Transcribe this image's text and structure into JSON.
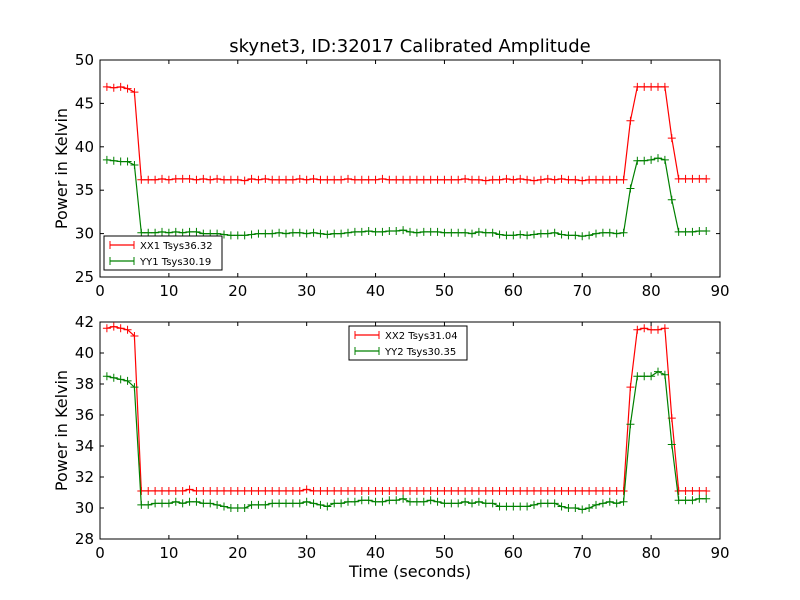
{
  "figure": {
    "title": "skynet3, ID:32017 Calibrated Amplitude",
    "xlabel": "Time (seconds)"
  },
  "colors": {
    "red": "#ff0000",
    "green": "#008000"
  },
  "chart_data": [
    {
      "type": "line",
      "title": "skynet3, ID:32017 Calibrated Amplitude",
      "xlabel": "",
      "ylabel": "Power in Kelvin",
      "xlim": [
        0,
        90
      ],
      "ylim": [
        25,
        50
      ],
      "xticks": [
        0,
        10,
        20,
        30,
        40,
        50,
        60,
        70,
        80,
        90
      ],
      "yticks": [
        25,
        30,
        35,
        40,
        45,
        50
      ],
      "grid": false,
      "legend": "lower-left",
      "series": [
        {
          "name": "XX1 Tsys36.32",
          "color": "#ff0000",
          "x": [
            1,
            2,
            3,
            4,
            5,
            6,
            7,
            8,
            9,
            10,
            11,
            12,
            13,
            14,
            15,
            16,
            17,
            18,
            19,
            20,
            21,
            22,
            23,
            24,
            25,
            26,
            27,
            28,
            29,
            30,
            31,
            32,
            33,
            34,
            35,
            36,
            37,
            38,
            39,
            40,
            41,
            42,
            43,
            44,
            45,
            46,
            47,
            48,
            49,
            50,
            51,
            52,
            53,
            54,
            55,
            56,
            57,
            58,
            59,
            60,
            61,
            62,
            63,
            64,
            65,
            66,
            67,
            68,
            69,
            70,
            71,
            72,
            73,
            74,
            75,
            76,
            77,
            78,
            79,
            80,
            81,
            82,
            83,
            84,
            85,
            86,
            87,
            88
          ],
          "values": [
            46.9,
            46.8,
            46.9,
            46.7,
            46.3,
            36.2,
            36.2,
            36.2,
            36.3,
            36.2,
            36.3,
            36.3,
            36.3,
            36.2,
            36.3,
            36.2,
            36.3,
            36.2,
            36.2,
            36.2,
            36.1,
            36.3,
            36.2,
            36.3,
            36.2,
            36.2,
            36.2,
            36.2,
            36.3,
            36.2,
            36.3,
            36.2,
            36.2,
            36.2,
            36.2,
            36.3,
            36.2,
            36.2,
            36.2,
            36.2,
            36.3,
            36.2,
            36.2,
            36.2,
            36.2,
            36.2,
            36.2,
            36.2,
            36.2,
            36.2,
            36.2,
            36.2,
            36.3,
            36.2,
            36.2,
            36.1,
            36.2,
            36.2,
            36.3,
            36.2,
            36.3,
            36.2,
            36.1,
            36.2,
            36.3,
            36.2,
            36.3,
            36.2,
            36.2,
            36.1,
            36.2,
            36.2,
            36.2,
            36.2,
            36.2,
            36.2,
            43.0,
            46.9,
            46.9,
            46.9,
            46.9,
            46.9,
            41.0,
            36.3,
            36.3,
            36.3,
            36.3,
            36.3
          ]
        },
        {
          "name": "YY1 Tsys30.19",
          "color": "#008000",
          "x": [
            1,
            2,
            3,
            4,
            5,
            6,
            7,
            8,
            9,
            10,
            11,
            12,
            13,
            14,
            15,
            16,
            17,
            18,
            19,
            20,
            21,
            22,
            23,
            24,
            25,
            26,
            27,
            28,
            29,
            30,
            31,
            32,
            33,
            34,
            35,
            36,
            37,
            38,
            39,
            40,
            41,
            42,
            43,
            44,
            45,
            46,
            47,
            48,
            49,
            50,
            51,
            52,
            53,
            54,
            55,
            56,
            57,
            58,
            59,
            60,
            61,
            62,
            63,
            64,
            65,
            66,
            67,
            68,
            69,
            70,
            71,
            72,
            73,
            74,
            75,
            76,
            77,
            78,
            79,
            80,
            81,
            82,
            83,
            84,
            85,
            86,
            87,
            88
          ],
          "values": [
            38.5,
            38.4,
            38.3,
            38.3,
            37.9,
            30.1,
            30.1,
            30.1,
            30.2,
            30.1,
            30.2,
            30.1,
            30.2,
            30.2,
            30.0,
            30.0,
            30.0,
            29.9,
            29.8,
            29.8,
            29.8,
            29.9,
            30.0,
            30.0,
            30.0,
            30.1,
            30.0,
            30.1,
            30.1,
            30.0,
            30.1,
            30.0,
            29.9,
            30.0,
            30.0,
            30.1,
            30.2,
            30.2,
            30.3,
            30.2,
            30.2,
            30.3,
            30.3,
            30.4,
            30.2,
            30.1,
            30.2,
            30.2,
            30.2,
            30.1,
            30.1,
            30.1,
            30.1,
            30.0,
            30.2,
            30.1,
            30.1,
            29.9,
            29.8,
            29.8,
            29.9,
            29.8,
            29.9,
            30.0,
            30.0,
            30.1,
            29.9,
            29.8,
            29.8,
            29.7,
            29.8,
            30.0,
            30.1,
            30.1,
            30.0,
            30.1,
            35.2,
            38.4,
            38.4,
            38.5,
            38.7,
            38.5,
            33.9,
            30.2,
            30.2,
            30.2,
            30.3,
            30.3
          ]
        }
      ]
    },
    {
      "type": "line",
      "title": "",
      "xlabel": "Time (seconds)",
      "ylabel": "Power in Kelvin",
      "xlim": [
        0,
        90
      ],
      "ylim": [
        28,
        42
      ],
      "xticks": [
        0,
        10,
        20,
        30,
        40,
        50,
        60,
        70,
        80,
        90
      ],
      "yticks": [
        28,
        30,
        32,
        34,
        36,
        38,
        40,
        42
      ],
      "grid": false,
      "legend": "top-center",
      "series": [
        {
          "name": "XX2 Tsys31.04",
          "color": "#ff0000",
          "x": [
            1,
            2,
            3,
            4,
            5,
            6,
            7,
            8,
            9,
            10,
            11,
            12,
            13,
            14,
            15,
            16,
            17,
            18,
            19,
            20,
            21,
            22,
            23,
            24,
            25,
            26,
            27,
            28,
            29,
            30,
            31,
            32,
            33,
            34,
            35,
            36,
            37,
            38,
            39,
            40,
            41,
            42,
            43,
            44,
            45,
            46,
            47,
            48,
            49,
            50,
            51,
            52,
            53,
            54,
            55,
            56,
            57,
            58,
            59,
            60,
            61,
            62,
            63,
            64,
            65,
            66,
            67,
            68,
            69,
            70,
            71,
            72,
            73,
            74,
            75,
            76,
            77,
            78,
            79,
            80,
            81,
            82,
            83,
            84,
            85,
            86,
            87,
            88
          ],
          "values": [
            41.6,
            41.7,
            41.6,
            41.5,
            41.1,
            31.1,
            31.1,
            31.1,
            31.1,
            31.1,
            31.1,
            31.1,
            31.2,
            31.1,
            31.1,
            31.1,
            31.1,
            31.1,
            31.1,
            31.1,
            31.1,
            31.1,
            31.1,
            31.1,
            31.1,
            31.1,
            31.1,
            31.1,
            31.1,
            31.2,
            31.1,
            31.1,
            31.1,
            31.1,
            31.1,
            31.1,
            31.1,
            31.1,
            31.1,
            31.1,
            31.1,
            31.1,
            31.1,
            31.1,
            31.1,
            31.1,
            31.1,
            31.1,
            31.1,
            31.1,
            31.1,
            31.1,
            31.1,
            31.1,
            31.1,
            31.1,
            31.1,
            31.1,
            31.1,
            31.1,
            31.1,
            31.1,
            31.1,
            31.1,
            31.1,
            31.1,
            31.1,
            31.1,
            31.1,
            31.1,
            31.1,
            31.1,
            31.1,
            31.1,
            31.1,
            31.1,
            37.8,
            41.5,
            41.6,
            41.5,
            41.5,
            41.6,
            35.8,
            31.1,
            31.1,
            31.1,
            31.1,
            31.1
          ]
        },
        {
          "name": "YY2 Tsys30.35",
          "color": "#008000",
          "x": [
            1,
            2,
            3,
            4,
            5,
            6,
            7,
            8,
            9,
            10,
            11,
            12,
            13,
            14,
            15,
            16,
            17,
            18,
            19,
            20,
            21,
            22,
            23,
            24,
            25,
            26,
            27,
            28,
            29,
            30,
            31,
            32,
            33,
            34,
            35,
            36,
            37,
            38,
            39,
            40,
            41,
            42,
            43,
            44,
            45,
            46,
            47,
            48,
            49,
            50,
            51,
            52,
            53,
            54,
            55,
            56,
            57,
            58,
            59,
            60,
            61,
            62,
            63,
            64,
            65,
            66,
            67,
            68,
            69,
            70,
            71,
            72,
            73,
            74,
            75,
            76,
            77,
            78,
            79,
            80,
            81,
            82,
            83,
            84,
            85,
            86,
            87,
            88
          ],
          "values": [
            38.5,
            38.4,
            38.3,
            38.2,
            37.8,
            30.2,
            30.2,
            30.3,
            30.3,
            30.3,
            30.4,
            30.3,
            30.4,
            30.4,
            30.3,
            30.3,
            30.2,
            30.1,
            30.0,
            30.0,
            30.0,
            30.2,
            30.2,
            30.2,
            30.3,
            30.3,
            30.3,
            30.3,
            30.3,
            30.4,
            30.3,
            30.2,
            30.1,
            30.3,
            30.3,
            30.4,
            30.4,
            30.5,
            30.5,
            30.4,
            30.4,
            30.5,
            30.5,
            30.6,
            30.4,
            30.4,
            30.4,
            30.5,
            30.4,
            30.3,
            30.3,
            30.3,
            30.4,
            30.3,
            30.4,
            30.3,
            30.3,
            30.1,
            30.1,
            30.1,
            30.1,
            30.1,
            30.2,
            30.3,
            30.3,
            30.3,
            30.1,
            30.0,
            30.0,
            29.9,
            30.0,
            30.2,
            30.3,
            30.4,
            30.3,
            30.4,
            35.4,
            38.5,
            38.5,
            38.5,
            38.8,
            38.6,
            34.1,
            30.5,
            30.5,
            30.5,
            30.6,
            30.6
          ]
        }
      ]
    }
  ]
}
